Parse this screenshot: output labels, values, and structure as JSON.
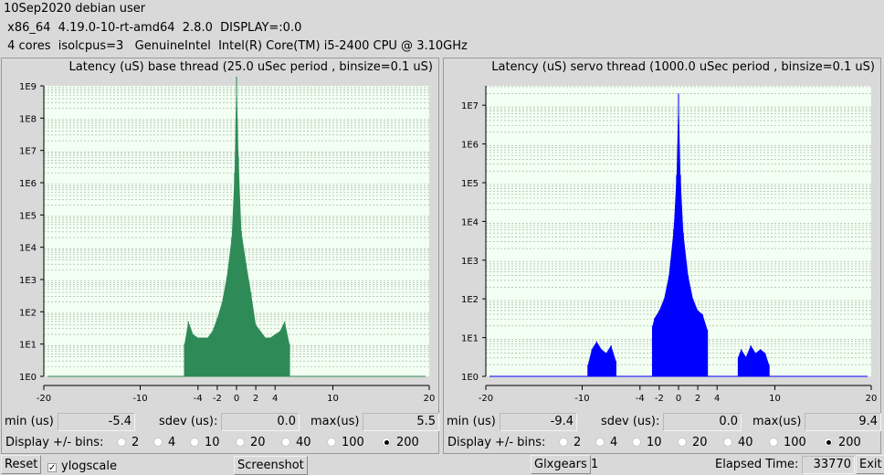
{
  "header": {
    "line1": "10Sep2020 debian user",
    "line2": " x86_64  4.19.0-10-rt-amd64  2.8.0  DISPLAY=:0.0",
    "line3": " 4 cores  isolcpus=3   GenuineIntel  Intel(R) Core(TM) i5-2400 CPU @ 3.10GHz"
  },
  "colors": {
    "base": "#2e8b57",
    "servo": "#0000ff",
    "plot_bg": "#f2fff2"
  },
  "base": {
    "title": "Latency (uS) base thread (25.0 uSec period , binsize=0.1 uS)",
    "min_label": "min (us)",
    "min": "-5.4",
    "sdev_label": "sdev (us):",
    "sdev": "0.0",
    "max_label": "max(us)",
    "max": "5.5",
    "bins_label": "Display +/- bins:",
    "bins": [
      "2",
      "4",
      "10",
      "20",
      "40",
      "100",
      "200"
    ],
    "bins_selected": "200"
  },
  "servo": {
    "title": "Latency (uS) servo thread (1000.0 uSec period , binsize=0.1 uS)",
    "min_label": "min (us)",
    "min": "-9.4",
    "sdev_label": "sdev (us):",
    "sdev": "0.0",
    "max_label": "max(us)",
    "max": "9.4",
    "bins_label": "Display +/- bins:",
    "bins": [
      "2",
      "4",
      "10",
      "20",
      "40",
      "100",
      "200"
    ],
    "bins_selected": "200"
  },
  "footer": {
    "reset": "Reset",
    "ylogscale": "ylogscale",
    "screenshot": "Screenshot",
    "glxgears": "Glxgears",
    "glxgears_count": "1",
    "elapsed_label": "Elapsed Time:",
    "elapsed": "33770",
    "exit": "Exit"
  },
  "chart_data": [
    {
      "type": "bar",
      "x_ticks": [
        "-20",
        "-10",
        "-4",
        "-2",
        "0",
        "2",
        "4",
        "10",
        "20"
      ],
      "y_ticks": [
        "1E0",
        "1E1",
        "1E2",
        "1E3",
        "1E4",
        "1E5",
        "1E6",
        "1E7",
        "1E8",
        "1E9"
      ],
      "xlim": [
        -20,
        20
      ],
      "ylim_log10": [
        0,
        9
      ],
      "grid": true,
      "x": [
        -5.4,
        -5.0,
        -4.5,
        -4.0,
        -3.5,
        -3.0,
        -2.5,
        -2.0,
        -1.5,
        -1.0,
        -0.5,
        -0.2,
        0.0,
        0.2,
        0.5,
        1.0,
        1.5,
        2.0,
        2.5,
        3.0,
        3.5,
        4.0,
        4.5,
        5.0,
        5.5
      ],
      "y_log10": [
        1.0,
        1.7,
        1.3,
        1.2,
        1.2,
        1.2,
        1.4,
        1.8,
        2.3,
        3.1,
        4.3,
        6.3,
        9.4,
        6.8,
        4.5,
        3.5,
        2.6,
        1.6,
        1.4,
        1.2,
        1.2,
        1.3,
        1.4,
        1.7,
        1.0
      ]
    },
    {
      "type": "bar",
      "x_ticks": [
        "-20",
        "-10",
        "-4",
        "-2",
        "0",
        "2",
        "4",
        "10",
        "20"
      ],
      "y_ticks": [
        "1E0",
        "1E1",
        "1E2",
        "1E3",
        "1E4",
        "1E5",
        "1E6",
        "1E7"
      ],
      "xlim": [
        -20,
        20
      ],
      "ylim_log10": [
        0,
        7.5
      ],
      "grid": true,
      "x": [
        -9.4,
        -9.0,
        -8.5,
        -8.0,
        -7.5,
        -7.0,
        -6.5,
        -2.7,
        -2.5,
        -2.0,
        -1.5,
        -1.0,
        -0.5,
        -0.2,
        0.0,
        0.2,
        0.5,
        1.0,
        1.5,
        2.0,
        2.5,
        3.0,
        6.2,
        6.5,
        7.0,
        7.5,
        8.0,
        8.5,
        9.0,
        9.4
      ],
      "y_log10": [
        0.3,
        0.7,
        0.9,
        0.7,
        0.6,
        0.8,
        0.4,
        1.3,
        1.5,
        1.7,
        2.0,
        2.6,
        3.8,
        5.2,
        7.3,
        5.2,
        3.7,
        2.6,
        2.0,
        1.7,
        1.6,
        1.2,
        0.5,
        0.7,
        0.5,
        0.8,
        0.6,
        0.7,
        0.6,
        0.3
      ]
    }
  ]
}
